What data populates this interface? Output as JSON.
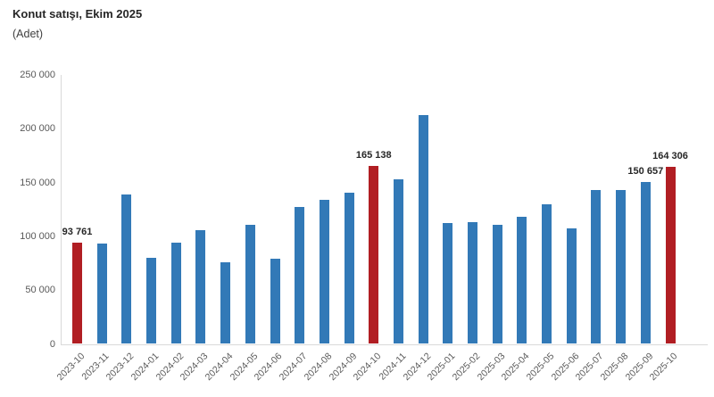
{
  "header": {
    "title": "Konut satışı, Ekim 2025",
    "subtitle": "(Adet)"
  },
  "chart_data": {
    "type": "bar",
    "title": "Konut satışı, Ekim 2025",
    "xlabel": "",
    "ylabel": "(Adet)",
    "ylim": [
      0,
      250000
    ],
    "grid": false,
    "legend": false,
    "categories": [
      "2023-10",
      "2023-11",
      "2023-12",
      "2024-01",
      "2024-02",
      "2024-03",
      "2024-04",
      "2024-05",
      "2024-06",
      "2024-07",
      "2024-08",
      "2024-09",
      "2024-10",
      "2024-11",
      "2024-12",
      "2025-01",
      "2025-02",
      "2025-03",
      "2025-04",
      "2025-05",
      "2025-06",
      "2025-07",
      "2025-08",
      "2025-09",
      "2025-10"
    ],
    "values": [
      93761,
      93514,
      138577,
      80308,
      93902,
      105394,
      75569,
      110588,
      79313,
      127088,
      134155,
      140919,
      165138,
      153014,
      212637,
      112173,
      112818,
      110795,
      118359,
      130025,
      107723,
      142858,
      143319,
      150657,
      164306
    ],
    "highlight_indices": [
      0,
      12,
      24
    ],
    "data_labels": [
      {
        "index": 0,
        "text": "93 761"
      },
      {
        "index": 12,
        "text": "165 138"
      },
      {
        "index": 23,
        "text": "150 657"
      },
      {
        "index": 24,
        "text": "164 306"
      }
    ],
    "yticks": [
      {
        "value": 0,
        "label": "0"
      },
      {
        "value": 50000,
        "label": "50 000"
      },
      {
        "value": 100000,
        "label": "100 000"
      },
      {
        "value": 150000,
        "label": "150 000"
      },
      {
        "value": 200000,
        "label": "200 000"
      },
      {
        "value": 250000,
        "label": "250 000"
      }
    ],
    "colors": {
      "bar": "#3279B7",
      "highlight": "#B11E23",
      "axis_line": "#D9D9D9",
      "tick_text": "#595959",
      "data_label_text": "#262626",
      "title_text": "#262626"
    }
  }
}
